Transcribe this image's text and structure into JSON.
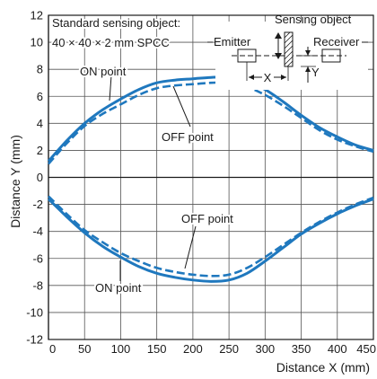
{
  "chart_data": {
    "type": "line",
    "xlabel": "Distance X (mm)",
    "ylabel": "Distance Y (mm)",
    "xlim": [
      0,
      450
    ],
    "ylim": [
      -12,
      12
    ],
    "xticks": [
      0,
      50,
      100,
      150,
      200,
      250,
      300,
      350,
      400,
      450
    ],
    "yticks": [
      -12,
      -10,
      -8,
      -6,
      -4,
      -2,
      0,
      2,
      4,
      6,
      8,
      10,
      12
    ],
    "grid": true,
    "line_color": "#1f78be",
    "note": {
      "line1": "Standard sensing object:",
      "line2": "40 × 40 × 2 mm SPCC"
    },
    "diagram": {
      "title": "Sensing object",
      "emitter": "Emitter",
      "receiver": "Receiver",
      "x_label": "X",
      "y_label": "Y"
    },
    "annotations": [
      {
        "text": "ON point"
      },
      {
        "text": "OFF point"
      },
      {
        "text": "OFF point"
      },
      {
        "text": "ON point"
      }
    ],
    "series": [
      {
        "style": "solid",
        "x": [
          0,
          25,
          50,
          75,
          100,
          125,
          150,
          175,
          200,
          225,
          250,
          275,
          300,
          325,
          350,
          375,
          400,
          425,
          450
        ],
        "y": [
          1.2,
          2.7,
          4.0,
          5.0,
          5.8,
          6.5,
          7.0,
          7.2,
          7.3,
          7.4,
          7.4,
          7.1,
          6.5,
          5.6,
          4.6,
          3.7,
          3.0,
          2.4,
          2.0
        ]
      },
      {
        "style": "dashed",
        "x": [
          0,
          25,
          50,
          75,
          100,
          125,
          150,
          175,
          200,
          225,
          250,
          275,
          300,
          325,
          350,
          375,
          400,
          425,
          450
        ],
        "y": [
          1.0,
          2.5,
          3.8,
          4.7,
          5.4,
          6.1,
          6.6,
          6.8,
          6.9,
          7.0,
          7.0,
          6.7,
          6.1,
          5.3,
          4.4,
          3.5,
          2.8,
          2.3,
          1.9
        ]
      },
      {
        "style": "dashed",
        "x": [
          0,
          25,
          50,
          75,
          100,
          125,
          150,
          175,
          200,
          225,
          250,
          275,
          300,
          325,
          350,
          375,
          400,
          425,
          450
        ],
        "y": [
          -1.4,
          -2.7,
          -3.9,
          -4.8,
          -5.6,
          -6.2,
          -6.7,
          -7.0,
          -7.2,
          -7.3,
          -7.2,
          -6.7,
          -5.9,
          -5.0,
          -4.1,
          -3.3,
          -2.6,
          -2.0,
          -1.5
        ]
      },
      {
        "style": "solid",
        "x": [
          0,
          25,
          50,
          75,
          100,
          125,
          150,
          175,
          200,
          225,
          250,
          275,
          300,
          325,
          350,
          375,
          400,
          425,
          450
        ],
        "y": [
          -1.6,
          -2.9,
          -4.1,
          -5.1,
          -5.9,
          -6.6,
          -7.1,
          -7.4,
          -7.6,
          -7.7,
          -7.6,
          -7.1,
          -6.2,
          -5.2,
          -4.2,
          -3.4,
          -2.7,
          -2.1,
          -1.6
        ]
      }
    ]
  }
}
